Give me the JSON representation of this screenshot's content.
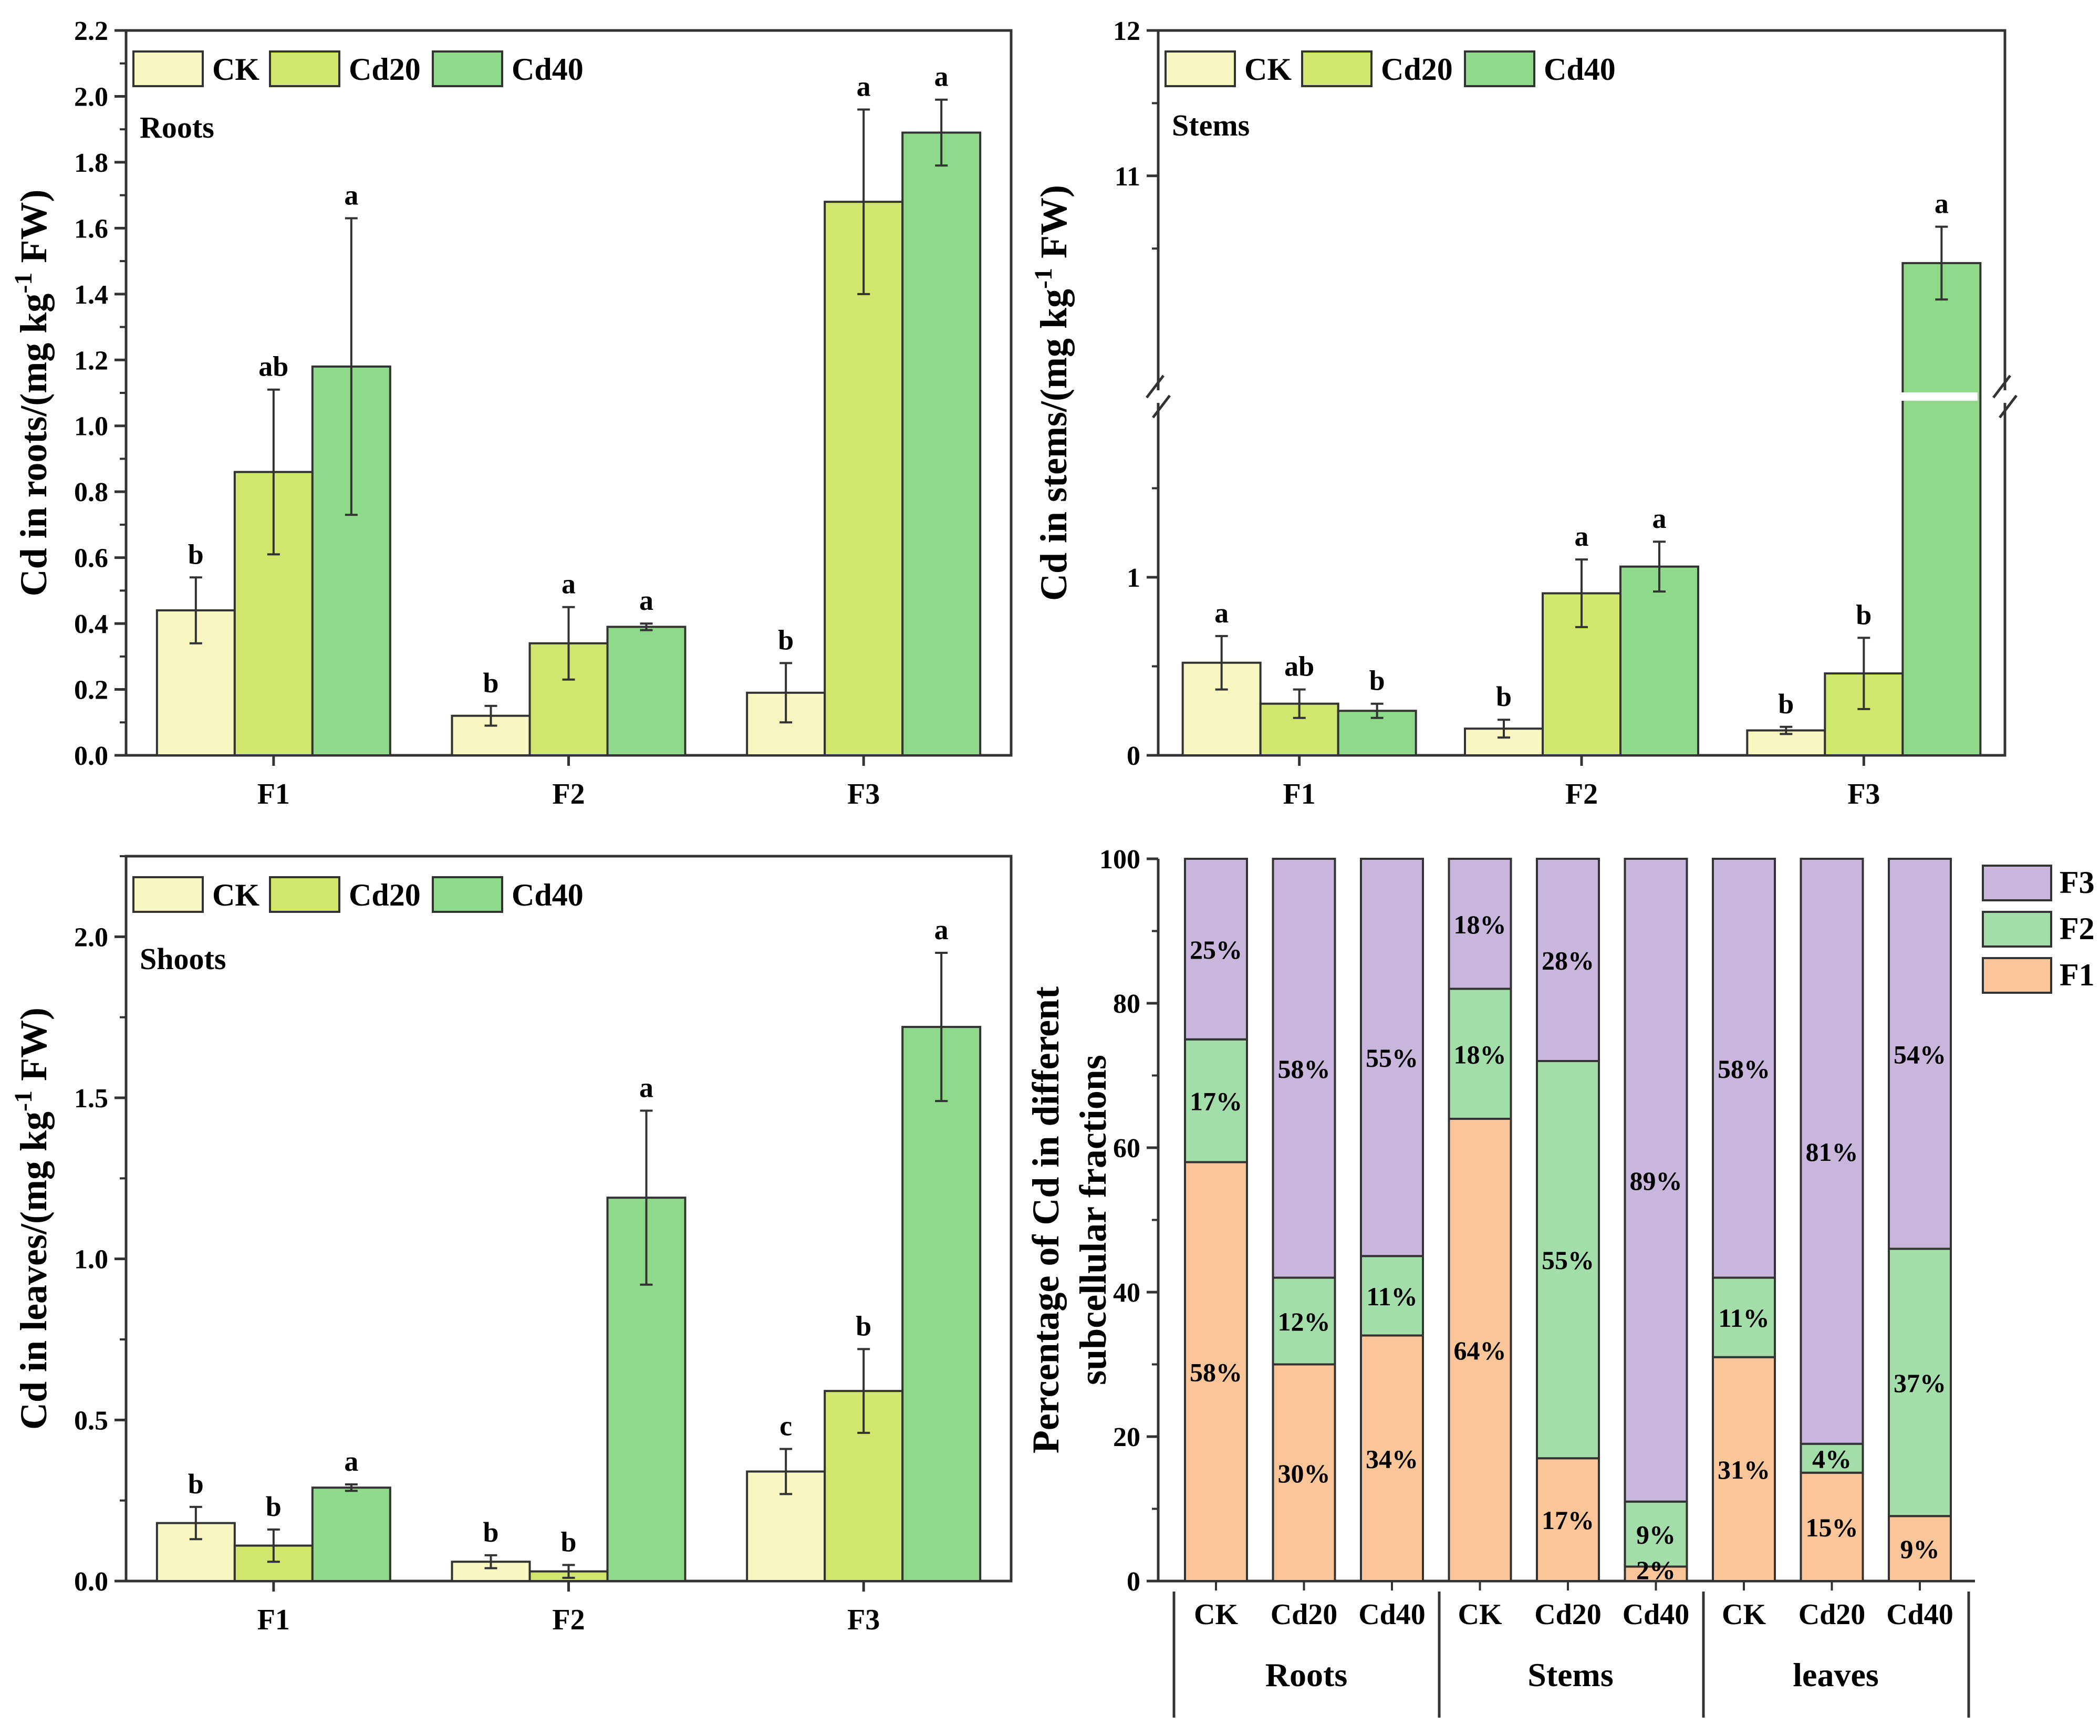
{
  "colors": {
    "CK": "#f8f7c2",
    "Cd20": "#cfe76d",
    "Cd40": "#8fd98a",
    "F1": "#f9c599",
    "F2": "#a3deaa",
    "F3": "#c8b6dc"
  },
  "chart_data": [
    {
      "id": "roots",
      "type": "bar",
      "title": "Roots",
      "ylabel": "Cd in roots/(mg kg-1 FW)",
      "ylabel_main": "Cd in roots/(mg kg",
      "ylabel_sup": "-1",
      "ylabel_end": " FW)",
      "categories": [
        "F1",
        "F2",
        "F3"
      ],
      "legend": [
        "CK",
        "Cd20",
        "Cd40"
      ],
      "ylim": [
        0,
        2.2
      ],
      "yticks": [
        "0.0",
        "0.2",
        "0.4",
        "0.6",
        "0.8",
        "1.0",
        "1.2",
        "1.4",
        "1.6",
        "1.8",
        "2.0",
        "2.2"
      ],
      "series": [
        {
          "name": "CK",
          "values": [
            0.44,
            0.12,
            0.19
          ],
          "errors": [
            0.1,
            0.03,
            0.09
          ],
          "letters": [
            "b",
            "b",
            "b"
          ]
        },
        {
          "name": "Cd20",
          "values": [
            0.86,
            0.34,
            1.68
          ],
          "errors": [
            0.25,
            0.11,
            0.28
          ],
          "letters": [
            "ab",
            "a",
            "a"
          ]
        },
        {
          "name": "Cd40",
          "values": [
            1.18,
            0.39,
            1.89
          ],
          "errors": [
            0.45,
            0.01,
            0.1
          ],
          "letters": [
            "a",
            "a",
            "a"
          ]
        }
      ]
    },
    {
      "id": "stems",
      "type": "bar",
      "title": "Stems",
      "ylabel": "Cd in stems/(mg kg-1 FW)",
      "ylabel_main": "Cd in stems/(mg kg",
      "ylabel_sup": "-1",
      "ylabel_end": " FW)",
      "categories": [
        "F1",
        "F2",
        "F3"
      ],
      "legend": [
        "CK",
        "Cd20",
        "Cd40"
      ],
      "axis_break": {
        "lower": [
          0,
          2
        ],
        "upper": [
          9.5,
          12
        ]
      },
      "yticks": [
        "0",
        "1",
        "11",
        "12"
      ],
      "series": [
        {
          "name": "CK",
          "values": [
            0.52,
            0.15,
            0.14
          ],
          "errors": [
            0.15,
            0.05,
            0.02
          ],
          "letters": [
            "a",
            "b",
            "b"
          ]
        },
        {
          "name": "Cd20",
          "values": [
            0.29,
            0.91,
            0.46
          ],
          "errors": [
            0.08,
            0.19,
            0.2
          ],
          "letters": [
            "ab",
            "a",
            "b"
          ]
        },
        {
          "name": "Cd40",
          "values": [
            0.25,
            1.06,
            10.4
          ],
          "errors": [
            0.04,
            0.14,
            0.25
          ],
          "letters": [
            "b",
            "a",
            "a"
          ]
        }
      ]
    },
    {
      "id": "leaves",
      "type": "bar",
      "title": "Shoots",
      "ylabel": "Cd in leaves/(mg kg-1 FW)",
      "ylabel_main": "Cd in leaves/(mg kg",
      "ylabel_sup": "-1",
      "ylabel_end": " FW)",
      "categories": [
        "F1",
        "F2",
        "F3"
      ],
      "legend": [
        "CK",
        "Cd20",
        "Cd40"
      ],
      "ylim": [
        0,
        2.25
      ],
      "yticks": [
        "0.0",
        "0.5",
        "1.0",
        "1.5",
        "2.0"
      ],
      "series": [
        {
          "name": "CK",
          "values": [
            0.18,
            0.06,
            0.34
          ],
          "errors": [
            0.05,
            0.02,
            0.07
          ],
          "letters": [
            "b",
            "b",
            "c"
          ]
        },
        {
          "name": "Cd20",
          "values": [
            0.11,
            0.03,
            0.59
          ],
          "errors": [
            0.05,
            0.02,
            0.13
          ],
          "letters": [
            "b",
            "b",
            "b"
          ]
        },
        {
          "name": "Cd40",
          "values": [
            0.29,
            1.19,
            1.72
          ],
          "errors": [
            0.01,
            0.27,
            0.23
          ],
          "letters": [
            "a",
            "a",
            "a"
          ]
        }
      ]
    },
    {
      "id": "fractions",
      "type": "stacked_bar",
      "ylabel_line1": "Percentage of Cd in different",
      "ylabel_line2": "subcellular fractions",
      "ylim": [
        0,
        100
      ],
      "yticks": [
        "0",
        "20",
        "40",
        "60",
        "80",
        "100"
      ],
      "legend": [
        "F3",
        "F2",
        "F1"
      ],
      "groups": [
        "Roots",
        "Stems",
        "leaves"
      ],
      "categories": [
        "CK",
        "Cd20",
        "Cd40",
        "CK",
        "Cd20",
        "Cd40",
        "CK",
        "Cd20",
        "Cd40"
      ],
      "series": [
        {
          "name": "F1",
          "values": [
            58,
            30,
            34,
            64,
            17,
            2,
            31,
            15,
            9
          ],
          "labels": [
            "58%",
            "30%",
            "34%",
            "64%",
            "17%",
            "2%",
            "31%",
            "15%",
            "9%"
          ]
        },
        {
          "name": "F2",
          "values": [
            17,
            12,
            11,
            18,
            55,
            9,
            11,
            4,
            37
          ],
          "labels": [
            "17%",
            "12%",
            "11%",
            "18%",
            "55%",
            "9%",
            "11%",
            "4%",
            "37%"
          ]
        },
        {
          "name": "F3",
          "values": [
            25,
            58,
            55,
            18,
            28,
            89,
            58,
            81,
            54
          ],
          "labels": [
            "25%",
            "58%",
            "55%",
            "18%",
            "28%",
            "89%",
            "58%",
            "81%",
            "54%"
          ]
        }
      ]
    }
  ]
}
